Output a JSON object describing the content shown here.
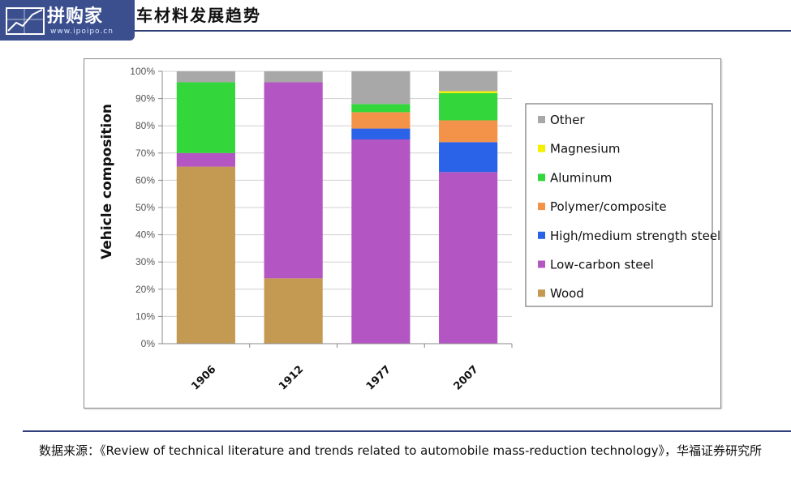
{
  "header": {
    "logo_text": "拼购家",
    "logo_url": "www.ipoipo.cn",
    "title": "车材料发展趋势"
  },
  "chart_data": {
    "type": "bar",
    "stacked": true,
    "ylabel": "Vehicle composition",
    "ylim": [
      0,
      100
    ],
    "yticks": [
      "0%",
      "10%",
      "20%",
      "30%",
      "40%",
      "50%",
      "60%",
      "70%",
      "80%",
      "90%",
      "100%"
    ],
    "categories": [
      "1906",
      "1912",
      "1977",
      "2007"
    ],
    "legend_position": "right",
    "series": [
      {
        "name": "Wood",
        "color": "#c49a53",
        "values": [
          65,
          24,
          0,
          0
        ]
      },
      {
        "name": "Low-carbon steel",
        "color": "#b455c4",
        "values": [
          5,
          72,
          75,
          63
        ]
      },
      {
        "name": "High/medium strength steel",
        "color": "#2a62e8",
        "values": [
          0,
          0,
          4,
          11
        ]
      },
      {
        "name": "Polymer/composite",
        "color": "#f39349",
        "values": [
          0,
          0,
          6,
          8
        ]
      },
      {
        "name": "Aluminum",
        "color": "#33d63b",
        "values": [
          26,
          0,
          3,
          10
        ]
      },
      {
        "name": "Magnesium",
        "color": "#f5f000",
        "values": [
          0,
          0,
          0,
          0.7
        ]
      },
      {
        "name": "Other",
        "color": "#a8a8a8",
        "values": [
          4,
          4,
          12,
          7.3
        ]
      }
    ],
    "legend_order": [
      "Other",
      "Magnesium",
      "Aluminum",
      "Polymer/composite",
      "High/medium strength steel",
      "Low-carbon steel",
      "Wood"
    ]
  },
  "footer": {
    "source_text": "数据来源：《Review of technical literature and trends related to automobile mass-reduction technology》，华福证券研究所"
  }
}
